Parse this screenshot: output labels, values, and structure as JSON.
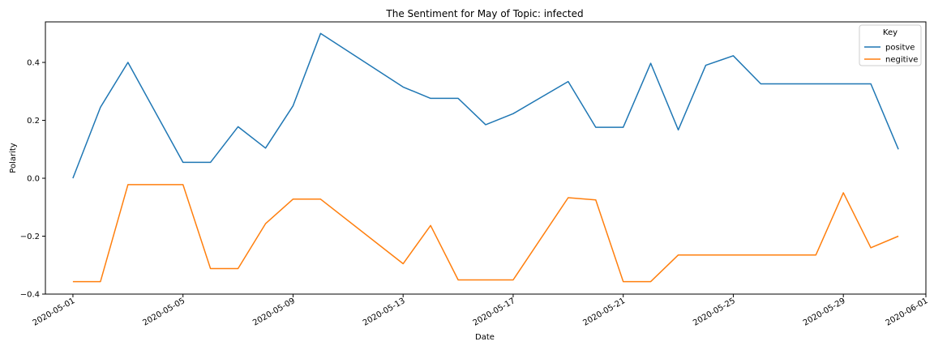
{
  "chart_data": {
    "type": "line",
    "title": "The Sentiment for May of Topic: infected",
    "xlabel": "Date",
    "ylabel": "Polarity",
    "x": [
      "2020-05-01",
      "2020-05-02",
      "2020-05-03",
      "2020-05-05",
      "2020-05-06",
      "2020-05-07",
      "2020-05-08",
      "2020-05-09",
      "2020-05-10",
      "2020-05-13",
      "2020-05-14",
      "2020-05-15",
      "2020-05-16",
      "2020-05-17",
      "2020-05-19",
      "2020-05-20",
      "2020-05-21",
      "2020-05-22",
      "2020-05-23",
      "2020-05-24",
      "2020-05-25",
      "2020-05-26",
      "2020-05-28",
      "2020-05-29",
      "2020-05-30",
      "2020-05-31"
    ],
    "series": [
      {
        "name": "positve",
        "color": "#1f77b4",
        "values": [
          0.0,
          0.245,
          0.4,
          0.055,
          0.055,
          0.178,
          0.104,
          0.25,
          0.5,
          0.315,
          0.276,
          0.276,
          0.185,
          0.223,
          0.334,
          0.176,
          0.176,
          0.397,
          0.167,
          0.39,
          0.423,
          0.326,
          0.326,
          0.326,
          0.326,
          0.1
        ]
      },
      {
        "name": "negitive",
        "color": "#ff7f0e",
        "values": [
          -0.357,
          -0.357,
          -0.022,
          -0.022,
          -0.312,
          -0.312,
          -0.157,
          -0.072,
          -0.072,
          -0.295,
          -0.163,
          -0.351,
          -0.351,
          -0.351,
          -0.067,
          -0.075,
          -0.357,
          -0.357,
          -0.265,
          -0.265,
          -0.265,
          -0.265,
          -0.265,
          -0.05,
          -0.24,
          -0.2
        ]
      }
    ],
    "xlim": [
      "2020-04-30",
      "2020-06-01"
    ],
    "ylim": [
      -0.4,
      0.54
    ],
    "x_ticks": [
      "2020-05-01",
      "2020-05-05",
      "2020-05-09",
      "2020-05-13",
      "2020-05-17",
      "2020-05-21",
      "2020-05-25",
      "2020-05-29",
      "2020-06-01"
    ],
    "y_ticks": [
      "−0.4",
      "−0.2",
      "0.0",
      "0.2",
      "0.4"
    ],
    "legend": {
      "title": "Key",
      "position": "top-right"
    },
    "grid": false
  }
}
